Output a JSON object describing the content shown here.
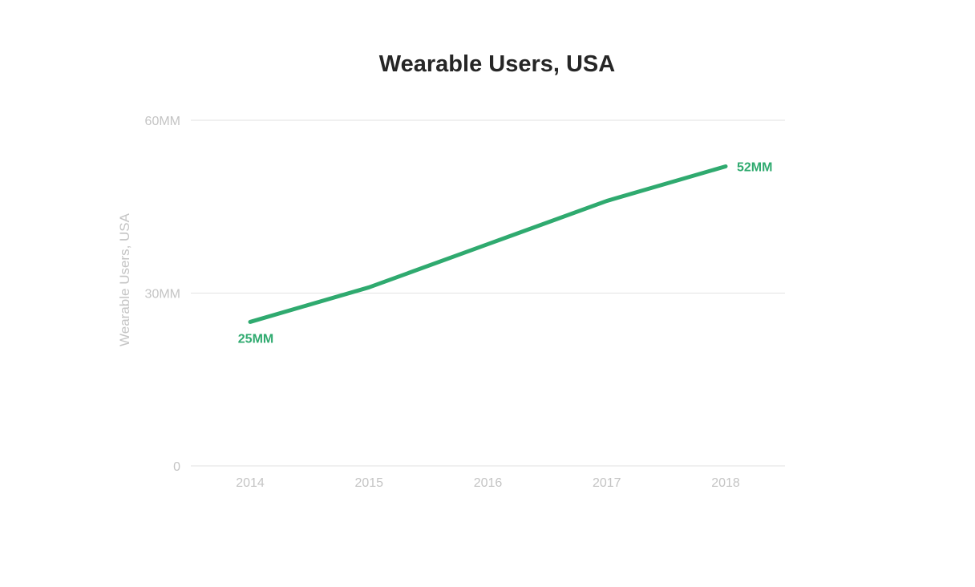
{
  "chart_data": {
    "type": "line",
    "title": "Wearable Users, USA",
    "ylabel": "Wearable Users, USA",
    "xlabel": "",
    "categories": [
      "2014",
      "2015",
      "2016",
      "2017",
      "2018"
    ],
    "series": [
      {
        "values": [
          25,
          31,
          38.5,
          46,
          52
        ]
      }
    ],
    "ylim": [
      0,
      60
    ],
    "yticks": [
      {
        "value": 0,
        "label": "0"
      },
      {
        "value": 30,
        "label": "30MM"
      },
      {
        "value": 60,
        "label": "60MM"
      }
    ],
    "data_labels": [
      {
        "index": 0,
        "text": "25MM",
        "position": "below"
      },
      {
        "index": 4,
        "text": "52MM",
        "position": "right"
      }
    ],
    "grid": true,
    "legend": "none",
    "line_color": "#2faa6f"
  }
}
